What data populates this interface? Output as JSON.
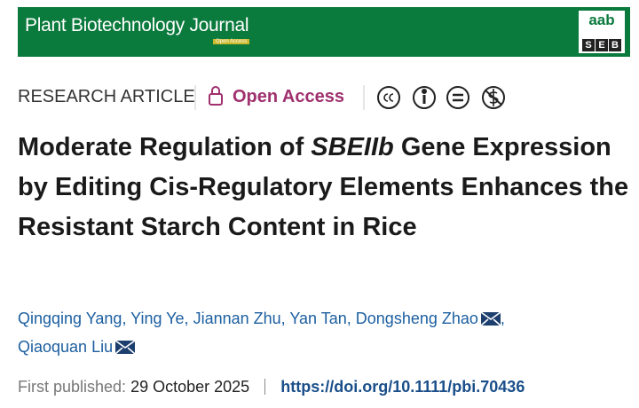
{
  "header": {
    "journal": "Plant Biotechnology Journal",
    "banner_badge": "Open Access",
    "logo_top": "aab",
    "logo_bottom": [
      "S",
      "E",
      "B"
    ]
  },
  "article": {
    "type": "RESEARCH ARTICLE",
    "access": "Open Access",
    "title": [
      {
        "text": "Moderate Regulation of ",
        "italic": false
      },
      {
        "text": "SBEIIb",
        "italic": true
      },
      {
        "text": " Gene Expression by Editing Cis-Regulatory Elements Enhances the Resistant Starch Content in Rice",
        "italic": false
      }
    ],
    "authors": [
      {
        "name": "Qingqing Yang",
        "separator": ",",
        "corresponding": false
      },
      {
        "name": "Ying Ye",
        "separator": ",",
        "corresponding": false
      },
      {
        "name": "Jiannan Zhu",
        "separator": ",",
        "corresponding": false
      },
      {
        "name": "Yan Tan",
        "separator": ",",
        "corresponding": false
      },
      {
        "name": "Dongsheng Zhao",
        "separator": ",",
        "corresponding": true
      },
      {
        "name": "Qiaoquan Liu",
        "corresponding": true
      }
    ],
    "published_label": "First published:",
    "published_date": "29 October 2025",
    "doi": "https://doi.org/10.1111/pbi.70436"
  }
}
